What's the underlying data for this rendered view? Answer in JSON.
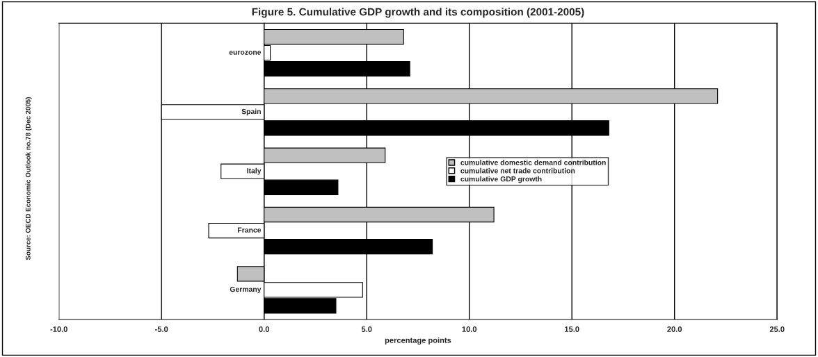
{
  "chart_data": {
    "type": "bar",
    "orientation": "horizontal",
    "title": "Figure 5. Cumulative GDP growth and its composition (2001-2005)",
    "xlabel": "percentage points",
    "annotations": [
      "Source: OECD Economic Outlook no.78 (Dec 2005)"
    ],
    "categories": [
      "eurozone",
      "Spain",
      "Italy",
      "France",
      "Germany"
    ],
    "series": [
      {
        "name": "cumulative domestic demand contribution",
        "color": "#c0c0c0",
        "values": [
          6.8,
          22.1,
          5.9,
          11.2,
          -1.3
        ]
      },
      {
        "name": "cumulative net trade contribution",
        "color": "#ffffff",
        "values": [
          0.3,
          -5.0,
          -2.1,
          -2.7,
          4.8
        ]
      },
      {
        "name": "cumulative GDP growth",
        "color": "#000000",
        "values": [
          7.1,
          16.8,
          3.6,
          8.2,
          3.5
        ]
      }
    ],
    "xlim": [
      -10,
      25
    ],
    "xticks": [
      {
        "value": -10,
        "label": "-10.0"
      },
      {
        "value": -5,
        "label": "-5.0"
      },
      {
        "value": 0,
        "label": "0.0"
      },
      {
        "value": 5,
        "label": "5.0"
      },
      {
        "value": 10,
        "label": "10.0"
      },
      {
        "value": 15,
        "label": "15.0"
      },
      {
        "value": 20,
        "label": "20.0"
      },
      {
        "value": 25,
        "label": "25.0"
      }
    ],
    "grid": "x",
    "legend": "center right"
  }
}
